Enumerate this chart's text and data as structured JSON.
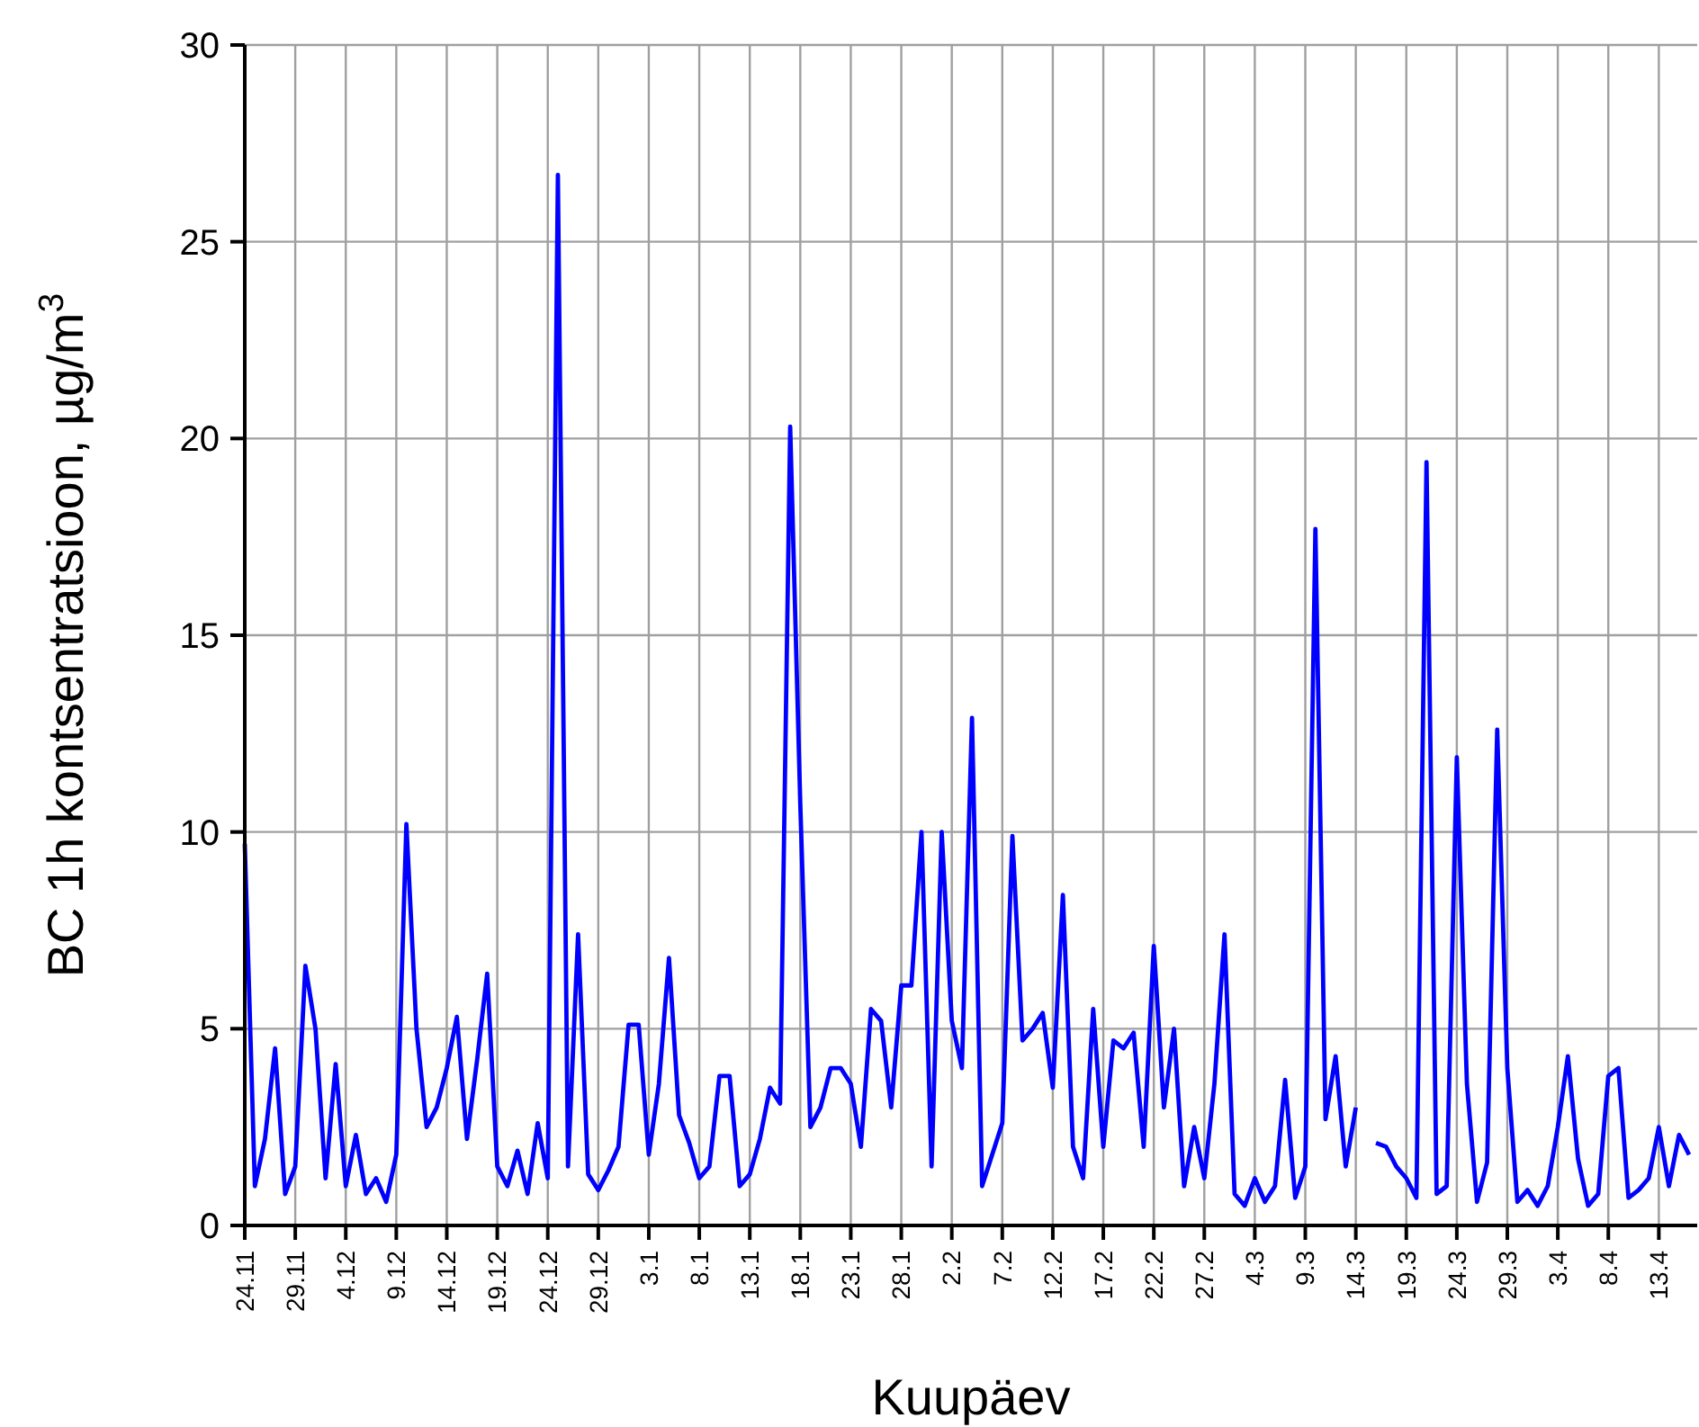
{
  "chart_data": {
    "type": "line",
    "xlabel": "Kuupäev",
    "ylabel": "BC 1h kontsentratsioon, µg/m$^{3}$",
    "categories": [
      "24.11",
      null,
      null,
      null,
      null,
      "29.11",
      null,
      null,
      null,
      null,
      "4.12",
      null,
      null,
      null,
      null,
      "9.12",
      null,
      null,
      null,
      null,
      "14.12",
      null,
      null,
      null,
      null,
      "19.12",
      null,
      null,
      null,
      null,
      "24.12",
      null,
      null,
      null,
      null,
      "29.12",
      null,
      null,
      null,
      null,
      "3.1",
      null,
      null,
      null,
      null,
      "8.1",
      null,
      null,
      null,
      null,
      "13.1",
      null,
      null,
      null,
      null,
      "18.1",
      null,
      null,
      null,
      null,
      "23.1",
      null,
      null,
      null,
      null,
      "28.1",
      null,
      null,
      null,
      null,
      "2.2",
      null,
      null,
      null,
      null,
      "7.2",
      null,
      null,
      null,
      null,
      "12.2",
      null,
      null,
      null,
      null,
      "17.2",
      null,
      null,
      null,
      null,
      "22.2",
      null,
      null,
      null,
      null,
      "27.2",
      null,
      null,
      null,
      null,
      "4.3",
      null,
      null,
      null,
      null,
      "9.3",
      null,
      null,
      null,
      null,
      "14.3",
      null,
      null,
      null,
      null,
      "19.3",
      null,
      null,
      null,
      null,
      "24.3",
      null,
      null,
      null,
      null,
      "29.3",
      null,
      null,
      null,
      null,
      "3.4",
      null,
      null,
      null,
      null,
      "8.4",
      null,
      null,
      null,
      null,
      "13.4",
      null,
      null,
      null
    ],
    "series": [
      {
        "color": "#0000ff",
        "values": [
          9.7,
          1.0,
          2.2,
          4.5,
          0.8,
          1.5,
          6.6,
          5.0,
          1.2,
          4.1,
          1.0,
          2.3,
          0.8,
          1.2,
          0.6,
          1.8,
          10.2,
          5.0,
          2.5,
          3.0,
          4.0,
          5.3,
          2.2,
          4.2,
          6.4,
          1.5,
          1.0,
          1.9,
          0.8,
          2.6,
          1.2,
          26.7,
          1.5,
          7.4,
          1.3,
          0.9,
          1.4,
          2.0,
          5.1,
          5.1,
          1.8,
          3.6,
          6.8,
          2.8,
          2.1,
          1.2,
          1.5,
          3.8,
          3.8,
          1.0,
          1.3,
          2.2,
          3.5,
          3.1,
          20.3,
          10.7,
          2.5,
          3.0,
          4.0,
          4.0,
          3.6,
          2.0,
          5.5,
          5.2,
          3.0,
          6.1,
          6.1,
          10.0,
          1.5,
          10.0,
          5.2,
          4.0,
          12.9,
          1.0,
          1.8,
          2.6,
          9.9,
          4.7,
          5.0,
          5.4,
          3.5,
          8.4,
          2.0,
          1.2,
          5.5,
          2.0,
          4.7,
          4.5,
          4.9,
          2.0,
          7.1,
          3.0,
          5.0,
          1.0,
          2.5,
          1.2,
          3.6,
          7.4,
          0.8,
          0.5,
          1.2,
          0.6,
          1.0,
          3.7,
          0.7,
          1.5,
          17.7,
          2.7,
          4.3,
          1.5,
          3.0,
          null,
          2.1,
          2.0,
          1.5,
          1.2,
          0.7,
          19.4,
          0.8,
          1.0,
          11.9,
          3.6,
          0.6,
          1.6,
          12.6,
          4.0,
          0.6,
          0.9,
          0.5,
          1.0,
          2.5,
          4.3,
          1.7,
          0.5,
          0.8,
          3.8,
          4.0,
          0.7,
          0.9,
          1.2,
          2.5,
          1.0,
          2.3,
          1.8
        ]
      }
    ],
    "ylim": [
      0,
      30
    ],
    "yticks": [
      0,
      5,
      10,
      15,
      20,
      25,
      30
    ],
    "grid": true,
    "line_style": "solid"
  }
}
